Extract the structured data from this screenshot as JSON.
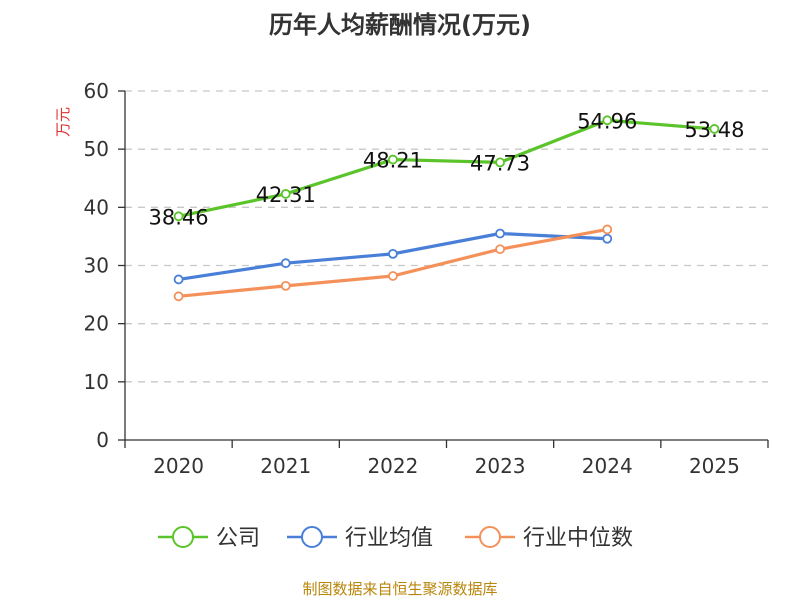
{
  "chart_data": {
    "type": "line",
    "title": "历年人均薪酬情况(万元)",
    "ylabel": "万元",
    "xlabel": "",
    "categories": [
      "2020",
      "2021",
      "2022",
      "2023",
      "2024",
      "2025"
    ],
    "ylim": [
      0,
      60
    ],
    "yticks": [
      0,
      10,
      20,
      30,
      40,
      50,
      60
    ],
    "grid": "horizontal-dashed",
    "legend_position": "bottom",
    "series": [
      {
        "name": "公司",
        "color": "#5bc42a",
        "values": [
          38.46,
          42.31,
          48.21,
          47.73,
          54.96,
          53.48
        ],
        "labels": [
          "38.46",
          "42.31",
          "48.21",
          "47.73",
          "54.96",
          "53.48"
        ]
      },
      {
        "name": "行业均值",
        "color": "#4a7fd8",
        "values": [
          27.6,
          30.4,
          32.0,
          35.5,
          34.6,
          null
        ]
      },
      {
        "name": "行业中位数",
        "color": "#f4915a",
        "values": [
          24.7,
          26.5,
          28.2,
          32.8,
          36.2,
          null
        ]
      }
    ]
  },
  "source_text": "制图数据来自恒生聚源数据库"
}
